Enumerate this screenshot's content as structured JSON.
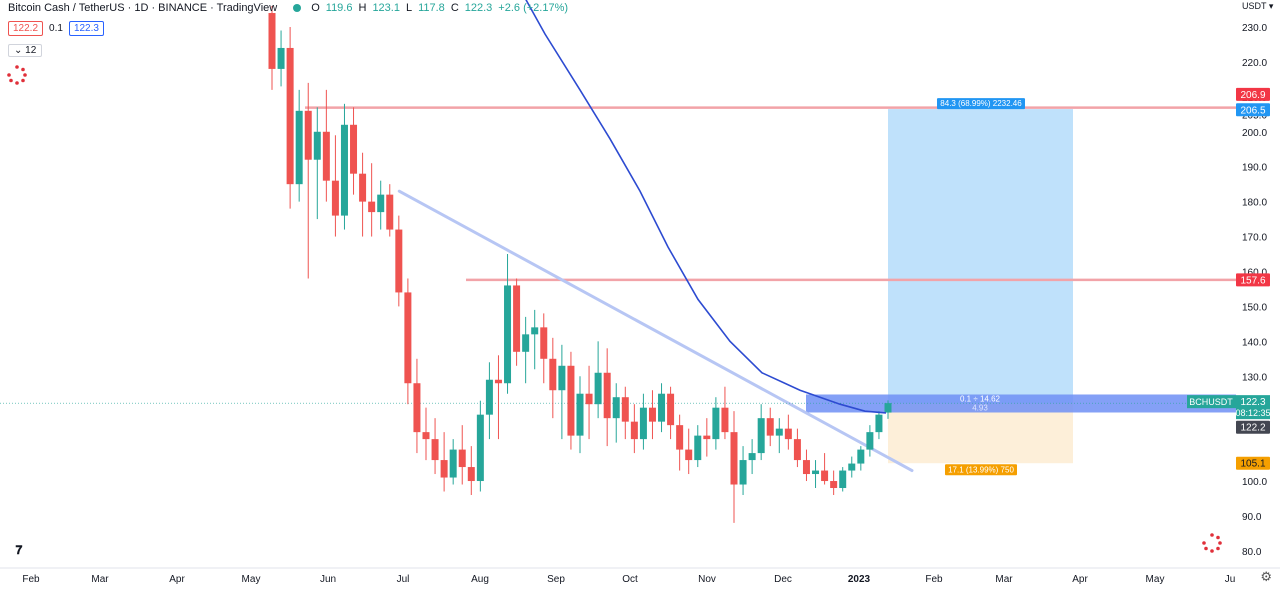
{
  "legend": {
    "symbol": "Bitcoin Cash / TetherUS · 1D · BINANCE · TradingView",
    "o_label": "O",
    "o": "119.6",
    "h_label": "H",
    "h": "123.1",
    "l_label": "L",
    "l": "117.8",
    "c_label": "C",
    "c": "122.3",
    "change": "+2.6 (+2.17%)"
  },
  "controls": {
    "sell_price": "122.2",
    "spread": "0.1",
    "buy_price": "122.3",
    "indicator_count": "12"
  },
  "colors": {
    "up": "#26a69a",
    "down": "#ef5350",
    "ma": "#2d4bd1",
    "trend": "#b7c6f4",
    "resistance": "#f2a3a8",
    "profit": "#bfe1fb",
    "loss": "#fdefd9",
    "entry": "#6f8ff5"
  },
  "chart_data": {
    "type": "candlestick",
    "symbol": "BCHUSDT",
    "unit": "USDT",
    "x_ticks": [
      "Feb",
      "Mar",
      "Apr",
      "May",
      "Jun",
      "Jul",
      "Aug",
      "Sep",
      "Oct",
      "Nov",
      "Dec",
      "2023",
      "Feb",
      "Mar",
      "Apr",
      "May",
      "Ju"
    ],
    "y_ticks": [
      "230.0",
      "220.0",
      "210.0",
      "205.0",
      "200.0",
      "190.0",
      "180.0",
      "170.0",
      "160.0",
      "150.0",
      "140.0",
      "130.0",
      "100.0",
      "90.0",
      "80.0"
    ],
    "ylim": [
      77.5,
      236.0
    ],
    "candles": [
      [
        234,
        236,
        212,
        218
      ],
      [
        218,
        229,
        213,
        224
      ],
      [
        224,
        230,
        178,
        185
      ],
      [
        185,
        212,
        180,
        206
      ],
      [
        206,
        214,
        158,
        192
      ],
      [
        192,
        207,
        175,
        200
      ],
      [
        200,
        212,
        180,
        186
      ],
      [
        186,
        199,
        170,
        176
      ],
      [
        176,
        208,
        172,
        202
      ],
      [
        202,
        207,
        182,
        188
      ],
      [
        188,
        194,
        170,
        180
      ],
      [
        180,
        191,
        170,
        177
      ],
      [
        177,
        186,
        172,
        182
      ],
      [
        182,
        185,
        170,
        172
      ],
      [
        172,
        176,
        150,
        154
      ],
      [
        154,
        158,
        122,
        128
      ],
      [
        128,
        135,
        108,
        114
      ],
      [
        114,
        121,
        106,
        112
      ],
      [
        112,
        118,
        102,
        106
      ],
      [
        106,
        114,
        97,
        101
      ],
      [
        101,
        112,
        99,
        109
      ],
      [
        109,
        116,
        99,
        104
      ],
      [
        104,
        110,
        96,
        100
      ],
      [
        100,
        123,
        97,
        119
      ],
      [
        119,
        134,
        112,
        129
      ],
      [
        129,
        136,
        112,
        128
      ],
      [
        128,
        165,
        125,
        156
      ],
      [
        156,
        158,
        133,
        137
      ],
      [
        137,
        147,
        128,
        142
      ],
      [
        142,
        149,
        132,
        144
      ],
      [
        144,
        148,
        128,
        135
      ],
      [
        135,
        141,
        118,
        126
      ],
      [
        126,
        139,
        112,
        133
      ],
      [
        133,
        137,
        109,
        113
      ],
      [
        113,
        130,
        108,
        125
      ],
      [
        125,
        133,
        112,
        122
      ],
      [
        122,
        140,
        118,
        131
      ],
      [
        131,
        138,
        110,
        118
      ],
      [
        118,
        128,
        111,
        124
      ],
      [
        124,
        127,
        112,
        117
      ],
      [
        117,
        122,
        108,
        112
      ],
      [
        112,
        125,
        109,
        121
      ],
      [
        121,
        126,
        112,
        117
      ],
      [
        117,
        128,
        114,
        125
      ],
      [
        125,
        127,
        112,
        116
      ],
      [
        116,
        119,
        103,
        109
      ],
      [
        109,
        115,
        102,
        106
      ],
      [
        106,
        116,
        104,
        113
      ],
      [
        113,
        118,
        107,
        112
      ],
      [
        112,
        124,
        109,
        121
      ],
      [
        121,
        127,
        112,
        114
      ],
      [
        114,
        120,
        88,
        99
      ],
      [
        99,
        110,
        96,
        106
      ],
      [
        106,
        112,
        102,
        108
      ],
      [
        108,
        122,
        106,
        118
      ],
      [
        118,
        121,
        110,
        113
      ],
      [
        113,
        118,
        108,
        115
      ],
      [
        115,
        119,
        109,
        112
      ],
      [
        112,
        115,
        104,
        106
      ],
      [
        106,
        109,
        100,
        102
      ],
      [
        102,
        106,
        98,
        103
      ],
      [
        103,
        108,
        99,
        100
      ],
      [
        100,
        103,
        96,
        98
      ],
      [
        98,
        104,
        97,
        103
      ],
      [
        103,
        107,
        101,
        105
      ],
      [
        105,
        110,
        103,
        109
      ],
      [
        109,
        116,
        107,
        114
      ],
      [
        114,
        120,
        112,
        119
      ],
      [
        119.6,
        123.1,
        117.8,
        122.3
      ]
    ],
    "ma_curve": [
      [
        1.72,
        245
      ],
      [
        1.84,
        228
      ],
      [
        1.96,
        212
      ],
      [
        2.08,
        198
      ],
      [
        2.22,
        183
      ],
      [
        2.36,
        167
      ],
      [
        2.5,
        152
      ],
      [
        2.65,
        140
      ],
      [
        2.8,
        131
      ],
      [
        2.95,
        126
      ],
      [
        3.1,
        122
      ],
      [
        3.24,
        120
      ],
      [
        3.35,
        119.5
      ]
    ],
    "trendline": {
      "from": [
        1.5,
        183
      ],
      "to": [
        3.45,
        103
      ]
    },
    "resistance_levels": [
      {
        "value": 206.9,
        "label": "206.9"
      },
      {
        "value": 157.6,
        "label": "157.6"
      }
    ],
    "position": {
      "entry": 122.2,
      "target": 206.5,
      "stop": 105.1,
      "target_label": "84.3 (68.99%) 2232.46",
      "stop_label": "17.1 (13.99%) 750",
      "entry_label_1": "0.1 ÷ 14.62",
      "entry_label_2": "4.93"
    },
    "price_labels": {
      "resistance_high": "206.9",
      "target": "206.5",
      "resistance_low": "157.6",
      "symbol": "BCHUSDT",
      "last": "122.3",
      "countdown": "08:12:35",
      "entry": "122.2",
      "stop": "105.1"
    }
  }
}
